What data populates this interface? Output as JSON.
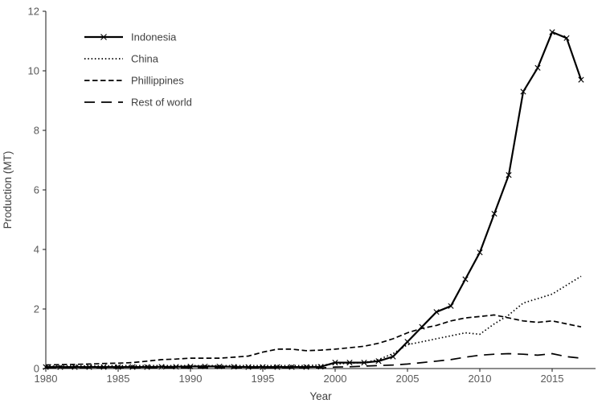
{
  "chart_data": {
    "type": "line",
    "title": "",
    "xlabel": "Year",
    "ylabel": "Production (MT)",
    "xlim": [
      1980,
      2018
    ],
    "ylim": [
      0,
      12
    ],
    "x_ticks": [
      1980,
      1985,
      1990,
      1995,
      2000,
      2005,
      2010,
      2015
    ],
    "y_ticks": [
      0,
      2,
      4,
      6,
      8,
      10,
      12
    ],
    "grid": false,
    "legend_position": "upper-left",
    "line_color": "#000000",
    "x": [
      1980,
      1981,
      1982,
      1983,
      1984,
      1985,
      1986,
      1987,
      1988,
      1989,
      1990,
      1991,
      1992,
      1993,
      1994,
      1995,
      1996,
      1997,
      1998,
      1999,
      2000,
      2001,
      2002,
      2003,
      2004,
      2005,
      2006,
      2007,
      2008,
      2009,
      2010,
      2011,
      2012,
      2013,
      2014,
      2015,
      2016,
      2017
    ],
    "series": [
      {
        "name": "Indonesia",
        "style": "solid",
        "marker": "x",
        "width": 2.2,
        "values": [
          0.05,
          0.05,
          0.05,
          0.05,
          0.05,
          0.05,
          0.05,
          0.05,
          0.06,
          0.06,
          0.07,
          0.07,
          0.07,
          0.06,
          0.05,
          0.05,
          0.05,
          0.05,
          0.05,
          0.06,
          0.2,
          0.2,
          0.2,
          0.25,
          0.4,
          0.9,
          1.4,
          1.9,
          2.1,
          3.0,
          3.9,
          5.2,
          6.5,
          9.3,
          10.1,
          11.3,
          11.1,
          9.7
        ]
      },
      {
        "name": "China",
        "style": "dotted",
        "marker": "none",
        "width": 1.7,
        "values": [
          0.08,
          0.08,
          0.09,
          0.09,
          0.09,
          0.1,
          0.1,
          0.1,
          0.1,
          0.1,
          0.1,
          0.1,
          0.1,
          0.1,
          0.1,
          0.1,
          0.1,
          0.1,
          0.1,
          0.12,
          0.15,
          0.18,
          0.2,
          0.3,
          0.5,
          0.8,
          0.9,
          1.0,
          1.1,
          1.2,
          1.15,
          1.5,
          1.8,
          2.2,
          2.35,
          2.5,
          2.8,
          3.1
        ]
      },
      {
        "name": "Phillippines",
        "style": "dashed",
        "marker": "none",
        "width": 1.7,
        "values": [
          0.12,
          0.13,
          0.14,
          0.15,
          0.17,
          0.18,
          0.2,
          0.25,
          0.3,
          0.32,
          0.35,
          0.35,
          0.35,
          0.38,
          0.42,
          0.55,
          0.65,
          0.65,
          0.6,
          0.62,
          0.65,
          0.7,
          0.75,
          0.85,
          1.0,
          1.2,
          1.35,
          1.45,
          1.6,
          1.7,
          1.75,
          1.8,
          1.7,
          1.6,
          1.55,
          1.6,
          1.5,
          1.4
        ]
      },
      {
        "name": "Rest of world",
        "style": "longdash",
        "marker": "none",
        "width": 1.7,
        "values": [
          0.02,
          0.02,
          0.02,
          0.02,
          0.02,
          0.02,
          0.02,
          0.02,
          0.02,
          0.02,
          0.02,
          0.02,
          0.02,
          0.02,
          0.02,
          0.02,
          0.02,
          0.02,
          0.02,
          0.02,
          0.05,
          0.06,
          0.08,
          0.1,
          0.12,
          0.15,
          0.2,
          0.25,
          0.3,
          0.38,
          0.45,
          0.48,
          0.5,
          0.48,
          0.45,
          0.5,
          0.4,
          0.35
        ]
      }
    ]
  }
}
